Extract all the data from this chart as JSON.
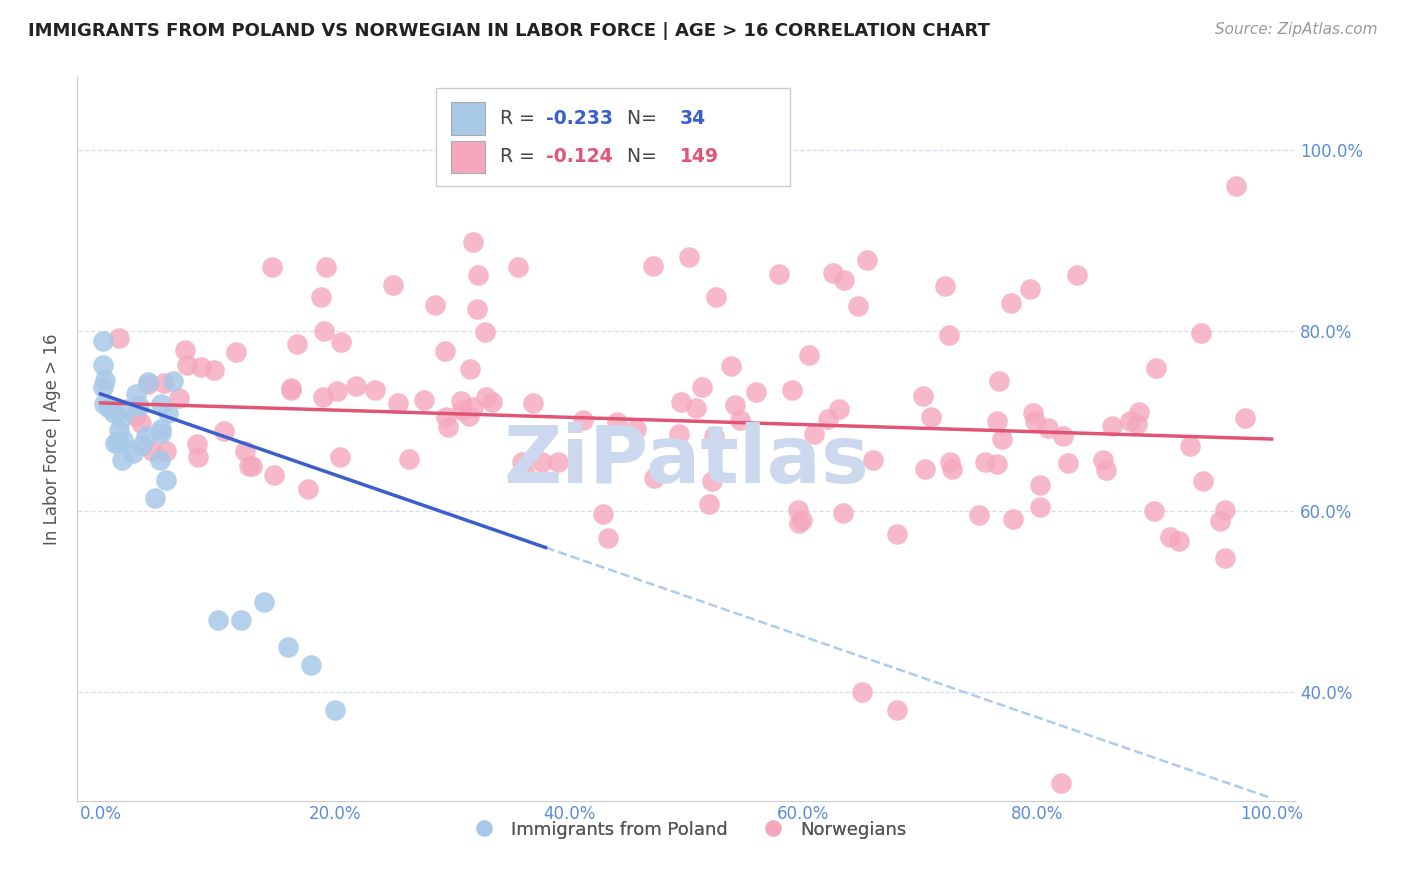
{
  "title": "IMMIGRANTS FROM POLAND VS NORWEGIAN IN LABOR FORCE | AGE > 16 CORRELATION CHART",
  "source": "Source: ZipAtlas.com",
  "ylabel": "In Labor Force | Age > 16",
  "legend_label1": "Immigrants from Poland",
  "legend_label2": "Norwegians",
  "r1": -0.233,
  "n1": 34,
  "r2": -0.124,
  "n2": 149,
  "xlim": [
    -0.02,
    1.02
  ],
  "ylim": [
    0.28,
    1.08
  ],
  "x_ticks": [
    0.0,
    0.2,
    0.4,
    0.6,
    0.8,
    1.0
  ],
  "x_tick_labels": [
    "0.0%",
    "20.0%",
    "40.0%",
    "60.0%",
    "80.0%",
    "100.0%"
  ],
  "y_ticks": [
    0.4,
    0.6,
    0.8,
    1.0
  ],
  "y_tick_labels": [
    "40.0%",
    "60.0%",
    "80.0%",
    "100.0%"
  ],
  "color_poland": "#a8c8e8",
  "color_norway": "#f5a8bc",
  "color_line_poland": "#3a5fcd",
  "color_line_norway": "#e05575",
  "color_dashed": "#aaccee",
  "background_color": "#ffffff",
  "grid_color": "#d4dff0",
  "tick_color": "#5b8dd9",
  "watermark": "ZiPatlas",
  "watermark_color": "#ccd8ee",
  "poland_seed": 7,
  "norway_seed": 42
}
